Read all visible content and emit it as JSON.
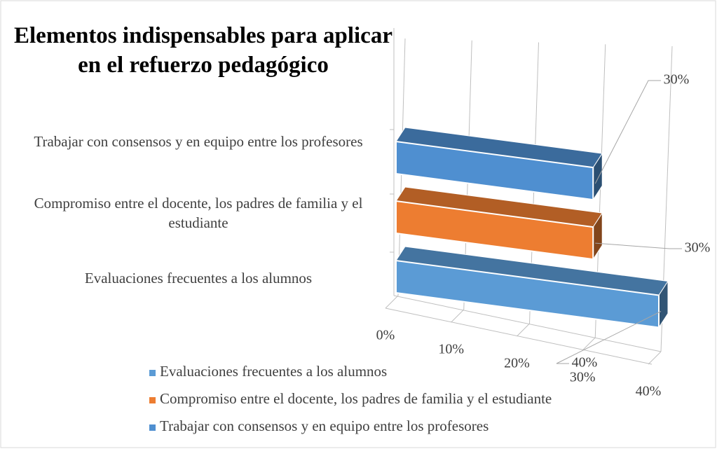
{
  "chart_data": {
    "type": "bar3d",
    "title": "Elementos indispensables para aplicar en el refuerzo pedagógico",
    "categories": [
      "Evaluaciones frecuentes a los alumnos",
      "Compromiso entre el docente, los padres de familia y el estudiante",
      "Trabajar con consensos y en equipo entre los profesores"
    ],
    "series": [
      {
        "name": "Evaluaciones frecuentes a los alumnos",
        "color": "#5b9bd5",
        "values": [
          40,
          null,
          null
        ],
        "value_labels": [
          "40%",
          null,
          null
        ]
      },
      {
        "name": "Compromiso entre el docente, los padres de familia y el estudiante",
        "color": "#ed7d31",
        "values": [
          null,
          30,
          null
        ],
        "value_labels": [
          null,
          "30%",
          null
        ]
      },
      {
        "name": "Trabajar con consensos y en equipo entre los profesores",
        "color": "#4f8fd0",
        "values": [
          null,
          null,
          30
        ],
        "value_labels": [
          null,
          null,
          "30%"
        ]
      }
    ],
    "xlim": [
      0,
      40
    ],
    "xticks": [
      {
        "value": 0,
        "label": "0%"
      },
      {
        "value": 10,
        "label": "10%"
      },
      {
        "value": 20,
        "label": "20%"
      },
      {
        "value": 30,
        "label": "30%"
      },
      {
        "value": 40,
        "label": "40%"
      }
    ],
    "grid": true,
    "legend": "bottom"
  }
}
